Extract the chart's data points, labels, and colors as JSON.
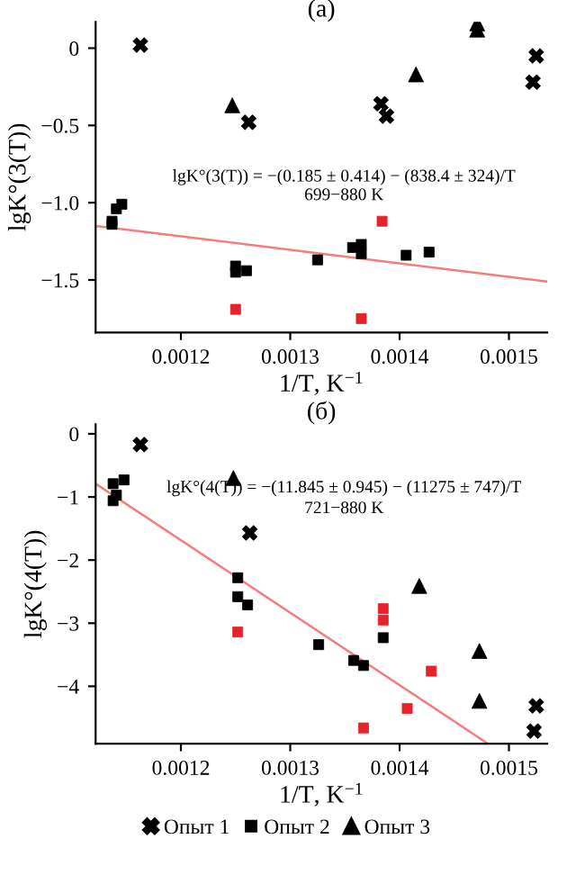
{
  "chart_data": [
    {
      "type": "scatter",
      "title": "(а)",
      "xlabel": "1/T, K$^{−1}$",
      "ylabel": "lgK°(3(T))",
      "annotations": [
        "lgK°(3(T)) = −(0.185 ± 0.414) − (838.4 ± 324)/T",
        "699−880 K"
      ],
      "xlim": [
        0.001122,
        0.001535
      ],
      "ylim": [
        -1.84,
        0.17
      ],
      "xticks": [
        0.0012,
        0.0013,
        0.0014,
        0.0015
      ],
      "yticks": [
        {
          "value": 0,
          "label": "0"
        },
        {
          "value": -0.5,
          "label": "−0.5"
        },
        {
          "value": -1.0,
          "label": "−1.0"
        },
        {
          "value": -1.5,
          "label": "−1.5"
        }
      ],
      "grid": false,
      "legend": false,
      "series": [
        {
          "color": "#000000",
          "marker": "cross",
          "x": [
            0.001163,
            0.001262,
            0.001383,
            0.001388,
            0.001525,
            0.001522
          ],
          "values": [
            0.02,
            -0.48,
            -0.36,
            -0.44,
            -0.05,
            -0.22
          ]
        },
        {
          "color": "#000000",
          "marker": "square",
          "x": [
            0.001137,
            0.001137,
            0.001141,
            0.001146,
            0.00125,
            0.00125,
            0.00126,
            0.001325,
            0.001357,
            0.001365,
            0.001365,
            0.001406,
            0.001427
          ],
          "values": [
            -1.12,
            -1.14,
            -1.04,
            -1.01,
            -1.41,
            -1.45,
            -1.44,
            -1.37,
            -1.29,
            -1.27,
            -1.33,
            -1.34,
            -1.32
          ]
        },
        {
          "color": "#000000",
          "marker": "triangle",
          "x": [
            0.001247,
            0.001415,
            0.001471,
            0.001471
          ],
          "values": [
            -0.37,
            -0.17,
            0.16,
            0.12
          ]
        },
        {
          "color": "#e8222a",
          "marker": "square",
          "x": [
            0.001384,
            0.00125,
            0.001365
          ],
          "values": [
            -1.12,
            -1.69,
            -1.75
          ]
        },
        {
          "type": "line",
          "color": "#f47c7c",
          "x": [
            0.001122,
            0.001535
          ],
          "values": [
            -1.15,
            -1.51
          ]
        }
      ]
    },
    {
      "type": "scatter",
      "title": "(б)",
      "xlabel": "1/T, K$^{−1}$",
      "ylabel": "lgK°(4(T))",
      "annotations": [
        "lgK°(4(T)) = −(11.845 ± 0.945) − (11275 ± 747)/T",
        "721−880 K"
      ],
      "xlim": [
        0.001122,
        0.001535
      ],
      "ylim": [
        -4.91,
        0.15
      ],
      "xticks": [
        0.0012,
        0.0013,
        0.0014,
        0.0015
      ],
      "yticks": [
        {
          "value": 0,
          "label": "0"
        },
        {
          "value": -1,
          "label": "−1"
        },
        {
          "value": -2,
          "label": "−2"
        },
        {
          "value": -3,
          "label": "−3"
        },
        {
          "value": -4,
          "label": "−4"
        }
      ],
      "grid": false,
      "legend": "bottom",
      "series": [
        {
          "name": "Опыт 1",
          "color": "#000000",
          "marker": "cross",
          "x": [
            0.001163,
            0.001263,
            0.001525,
            0.001523
          ],
          "values": [
            -0.17,
            -1.57,
            -4.31,
            -4.71
          ]
        },
        {
          "name": "Опыт 2",
          "color": "#000000",
          "marker": "square",
          "x": [
            0.001138,
            0.001148,
            0.001138,
            0.001141,
            0.001252,
            0.001252,
            0.001261,
            0.001326,
            0.001358,
            0.001367,
            0.001385
          ],
          "values": [
            -0.79,
            -0.73,
            -1.06,
            -0.97,
            -2.28,
            -2.58,
            -2.71,
            -3.34,
            -3.59,
            -3.67,
            -3.23
          ]
        },
        {
          "name": "Опыт 3",
          "color": "#000000",
          "marker": "triangle",
          "x": [
            0.001248,
            0.001418,
            0.001473,
            0.001473
          ],
          "values": [
            -0.7,
            -2.41,
            -3.44,
            -4.23
          ]
        },
        {
          "color": "#e8222a",
          "marker": "square",
          "x": [
            0.001252,
            0.001385,
            0.001385,
            0.001429,
            0.001407,
            0.001367
          ],
          "values": [
            -3.14,
            -2.77,
            -2.95,
            -3.76,
            -4.35,
            -4.66
          ]
        },
        {
          "type": "line",
          "color": "#f47c7c",
          "x": [
            0.001122,
            0.00148
          ],
          "values": [
            -0.79,
            -4.9
          ]
        }
      ]
    }
  ]
}
